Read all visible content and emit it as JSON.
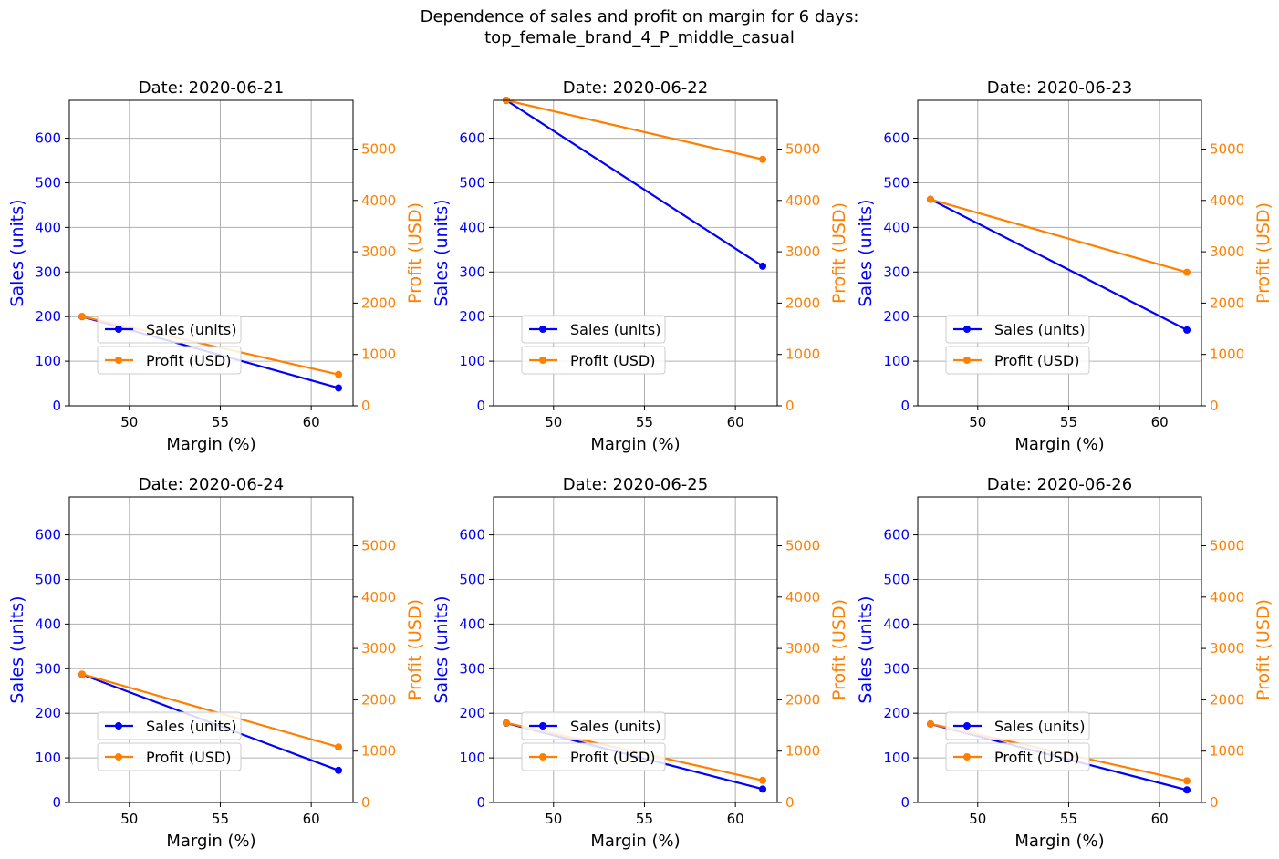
{
  "figure": {
    "title_line1": "Dependence of sales and profit on margin for 6 days:",
    "title_line2": "top_female_brand_4_P_middle_casual"
  },
  "colors": {
    "sales": "#0000ff",
    "profit": "#ff8000",
    "grid": "#b0b0b0"
  },
  "chart_data": [
    {
      "type": "line",
      "title": "Date: 2020-06-21",
      "xlabel": "Margin (%)",
      "ylabel": "Sales (units)",
      "y2label": "Profit (USD)",
      "xlim": [
        46.7,
        62.3
      ],
      "ylim": [
        0,
        685
      ],
      "y2lim": [
        0,
        5950
      ],
      "xticks": [
        50,
        55,
        60
      ],
      "yticks": [
        0,
        100,
        200,
        300,
        400,
        500,
        600
      ],
      "y2ticks": [
        0,
        1000,
        2000,
        3000,
        4000,
        5000
      ],
      "grid": true,
      "legend": "lower-left",
      "x": [
        47.4,
        61.5
      ],
      "series": [
        {
          "name": "Sales (units)",
          "axis": "left",
          "values": [
            200,
            40
          ]
        },
        {
          "name": "Profit (USD)",
          "axis": "right",
          "values": [
            1740,
            610
          ]
        }
      ]
    },
    {
      "type": "line",
      "title": "Date: 2020-06-22",
      "xlabel": "Margin (%)",
      "ylabel": "Sales (units)",
      "y2label": "Profit (USD)",
      "xlim": [
        46.7,
        62.3
      ],
      "ylim": [
        0,
        685
      ],
      "y2lim": [
        0,
        5950
      ],
      "xticks": [
        50,
        55,
        60
      ],
      "yticks": [
        0,
        100,
        200,
        300,
        400,
        500,
        600
      ],
      "y2ticks": [
        0,
        1000,
        2000,
        3000,
        4000,
        5000
      ],
      "grid": true,
      "legend": "lower-left",
      "x": [
        47.4,
        61.5
      ],
      "series": [
        {
          "name": "Sales (units)",
          "axis": "left",
          "values": [
            685,
            313
          ]
        },
        {
          "name": "Profit (USD)",
          "axis": "right",
          "values": [
            5950,
            4800
          ]
        }
      ]
    },
    {
      "type": "line",
      "title": "Date: 2020-06-23",
      "xlabel": "Margin (%)",
      "ylabel": "Sales (units)",
      "y2label": "Profit (USD)",
      "xlim": [
        46.7,
        62.3
      ],
      "ylim": [
        0,
        685
      ],
      "y2lim": [
        0,
        5950
      ],
      "xticks": [
        50,
        55,
        60
      ],
      "yticks": [
        0,
        100,
        200,
        300,
        400,
        500,
        600
      ],
      "y2ticks": [
        0,
        1000,
        2000,
        3000,
        4000,
        5000
      ],
      "grid": true,
      "legend": "lower-left",
      "x": [
        47.4,
        61.5
      ],
      "series": [
        {
          "name": "Sales (units)",
          "axis": "left",
          "values": [
            463,
            170
          ]
        },
        {
          "name": "Profit (USD)",
          "axis": "right",
          "values": [
            4020,
            2600
          ]
        }
      ]
    },
    {
      "type": "line",
      "title": "Date: 2020-06-24",
      "xlabel": "Margin (%)",
      "ylabel": "Sales (units)",
      "y2label": "Profit (USD)",
      "xlim": [
        46.7,
        62.3
      ],
      "ylim": [
        0,
        685
      ],
      "y2lim": [
        0,
        5950
      ],
      "xticks": [
        50,
        55,
        60
      ],
      "yticks": [
        0,
        100,
        200,
        300,
        400,
        500,
        600
      ],
      "y2ticks": [
        0,
        1000,
        2000,
        3000,
        4000,
        5000
      ],
      "grid": true,
      "legend": "lower-left",
      "x": [
        47.4,
        61.5
      ],
      "series": [
        {
          "name": "Sales (units)",
          "axis": "left",
          "values": [
            287,
            72
          ]
        },
        {
          "name": "Profit (USD)",
          "axis": "right",
          "values": [
            2500,
            1080
          ]
        }
      ]
    },
    {
      "type": "line",
      "title": "Date: 2020-06-25",
      "xlabel": "Margin (%)",
      "ylabel": "Sales (units)",
      "y2label": "Profit (USD)",
      "xlim": [
        46.7,
        62.3
      ],
      "ylim": [
        0,
        685
      ],
      "y2lim": [
        0,
        5950
      ],
      "xticks": [
        50,
        55,
        60
      ],
      "yticks": [
        0,
        100,
        200,
        300,
        400,
        500,
        600
      ],
      "y2ticks": [
        0,
        1000,
        2000,
        3000,
        4000,
        5000
      ],
      "grid": true,
      "legend": "lower-left",
      "x": [
        47.4,
        61.5
      ],
      "series": [
        {
          "name": "Sales (units)",
          "axis": "left",
          "values": [
            178,
            30
          ]
        },
        {
          "name": "Profit (USD)",
          "axis": "right",
          "values": [
            1550,
            430
          ]
        }
      ]
    },
    {
      "type": "line",
      "title": "Date: 2020-06-26",
      "xlabel": "Margin (%)",
      "ylabel": "Sales (units)",
      "y2label": "Profit (USD)",
      "xlim": [
        46.7,
        62.3
      ],
      "ylim": [
        0,
        685
      ],
      "y2lim": [
        0,
        5950
      ],
      "xticks": [
        50,
        55,
        60
      ],
      "yticks": [
        0,
        100,
        200,
        300,
        400,
        500,
        600
      ],
      "y2ticks": [
        0,
        1000,
        2000,
        3000,
        4000,
        5000
      ],
      "grid": true,
      "legend": "lower-left",
      "x": [
        47.4,
        61.5
      ],
      "series": [
        {
          "name": "Sales (units)",
          "axis": "left",
          "values": [
            176,
            28
          ]
        },
        {
          "name": "Profit (USD)",
          "axis": "right",
          "values": [
            1530,
            420
          ]
        }
      ]
    }
  ]
}
